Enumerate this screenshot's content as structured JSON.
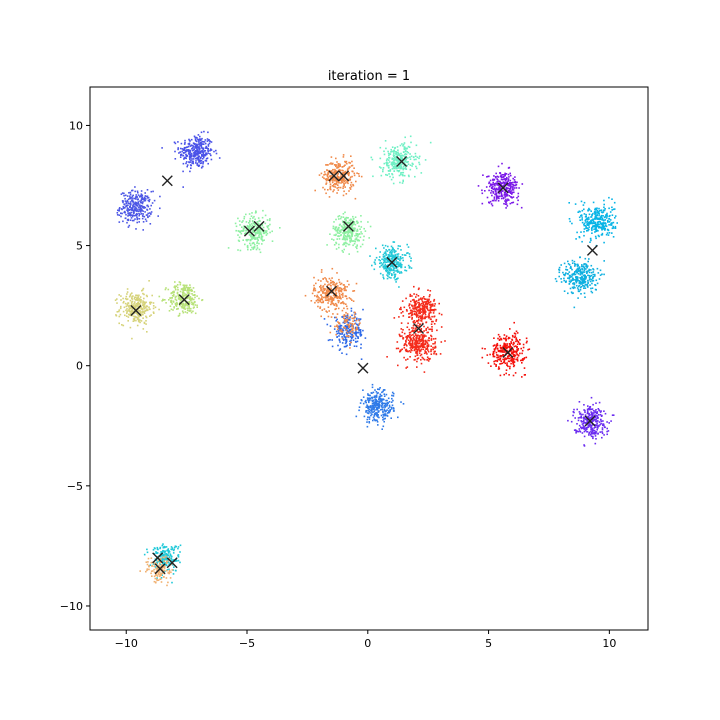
{
  "chart_data": {
    "type": "scatter",
    "title": "iteration = 1",
    "xlabel": "",
    "ylabel": "",
    "xlim": [
      -11.5,
      11.6
    ],
    "ylim": [
      -11.0,
      11.6
    ],
    "xticks": [
      -10,
      -5,
      0,
      5,
      10
    ],
    "yticks": [
      -10,
      -5,
      0,
      5,
      10
    ],
    "tick_labels_x": [
      "−10",
      "−5",
      "0",
      "5",
      "10"
    ],
    "tick_labels_y": [
      "−10",
      "−5",
      "0",
      "5",
      "10"
    ],
    "grid": false,
    "legend": "none",
    "clusters": [
      {
        "center": [
          -7.1,
          8.9
        ],
        "color": "#4a52e8",
        "n": 320,
        "spread": 0.35
      },
      {
        "center": [
          -9.6,
          6.6
        ],
        "color": "#4d57e5",
        "n": 300,
        "spread": 0.33
      },
      {
        "center": [
          -9.6,
          2.4
        ],
        "color": "#d6d37a",
        "n": 280,
        "spread": 0.33
      },
      {
        "center": [
          -7.6,
          2.8
        ],
        "color": "#b8e27a",
        "n": 260,
        "spread": 0.33
      },
      {
        "center": [
          -4.7,
          5.6
        ],
        "color": "#8ef0a2",
        "n": 260,
        "spread": 0.33
      },
      {
        "center": [
          -1.2,
          7.9
        ],
        "color": "#f08a4a",
        "n": 280,
        "spread": 0.33
      },
      {
        "center": [
          -1.5,
          3.0
        ],
        "color": "#f08a4a",
        "n": 280,
        "spread": 0.36
      },
      {
        "center": [
          -0.8,
          5.6
        ],
        "color": "#8ef0a2",
        "n": 280,
        "spread": 0.33
      },
      {
        "center": [
          1.3,
          8.5
        ],
        "color": "#6ff0c4",
        "n": 280,
        "spread": 0.36
      },
      {
        "center": [
          1.0,
          4.3
        ],
        "color": "#22c8d8",
        "n": 280,
        "spread": 0.33
      },
      {
        "center": [
          -0.8,
          1.4
        ],
        "color": "#2f6ae8",
        "n": 220,
        "spread": 0.33
      },
      {
        "center": [
          -0.8,
          1.7
        ],
        "color": "#f08a4a",
        "n": 80,
        "spread": 0.28
      },
      {
        "center": [
          2.2,
          2.3
        ],
        "color": "#f42a1a",
        "n": 280,
        "spread": 0.33
      },
      {
        "center": [
          2.1,
          0.9
        ],
        "color": "#f42a1a",
        "n": 320,
        "spread": 0.36
      },
      {
        "center": [
          0.4,
          -1.7
        ],
        "color": "#2f7ae8",
        "n": 280,
        "spread": 0.33
      },
      {
        "center": [
          5.6,
          7.4
        ],
        "color": "#7a18e8",
        "n": 300,
        "spread": 0.33
      },
      {
        "center": [
          5.8,
          0.6
        ],
        "color": "#f4100a",
        "n": 300,
        "spread": 0.36
      },
      {
        "center": [
          9.5,
          6.0
        ],
        "color": "#08b4e6",
        "n": 300,
        "spread": 0.36
      },
      {
        "center": [
          8.8,
          3.7
        ],
        "color": "#0fb0e0",
        "n": 300,
        "spread": 0.36
      },
      {
        "center": [
          9.2,
          -2.3
        ],
        "color": "#6a2cf0",
        "n": 280,
        "spread": 0.33
      },
      {
        "center": [
          -8.4,
          -8.0
        ],
        "color": "#1ec8d8",
        "n": 180,
        "spread": 0.3
      },
      {
        "center": [
          -8.6,
          -8.5
        ],
        "color": "#f0b070",
        "n": 120,
        "spread": 0.28
      }
    ],
    "centroids": [
      [
        -8.3,
        7.7
      ],
      [
        -4.9,
        5.6
      ],
      [
        -4.5,
        5.8
      ],
      [
        -9.6,
        2.3
      ],
      [
        -7.6,
        2.75
      ],
      [
        -1.4,
        7.9
      ],
      [
        -1.0,
        7.9
      ],
      [
        -0.8,
        5.8
      ],
      [
        1.4,
        8.5
      ],
      [
        1.0,
        4.3
      ],
      [
        -1.5,
        3.1
      ],
      [
        5.6,
        7.4
      ],
      [
        9.3,
        4.8
      ],
      [
        2.1,
        1.55
      ],
      [
        -0.2,
        -0.1
      ],
      [
        5.8,
        0.55
      ],
      [
        9.2,
        -2.3
      ],
      [
        -8.7,
        -8.0
      ],
      [
        -8.6,
        -8.45
      ],
      [
        -8.1,
        -8.2
      ]
    ]
  }
}
